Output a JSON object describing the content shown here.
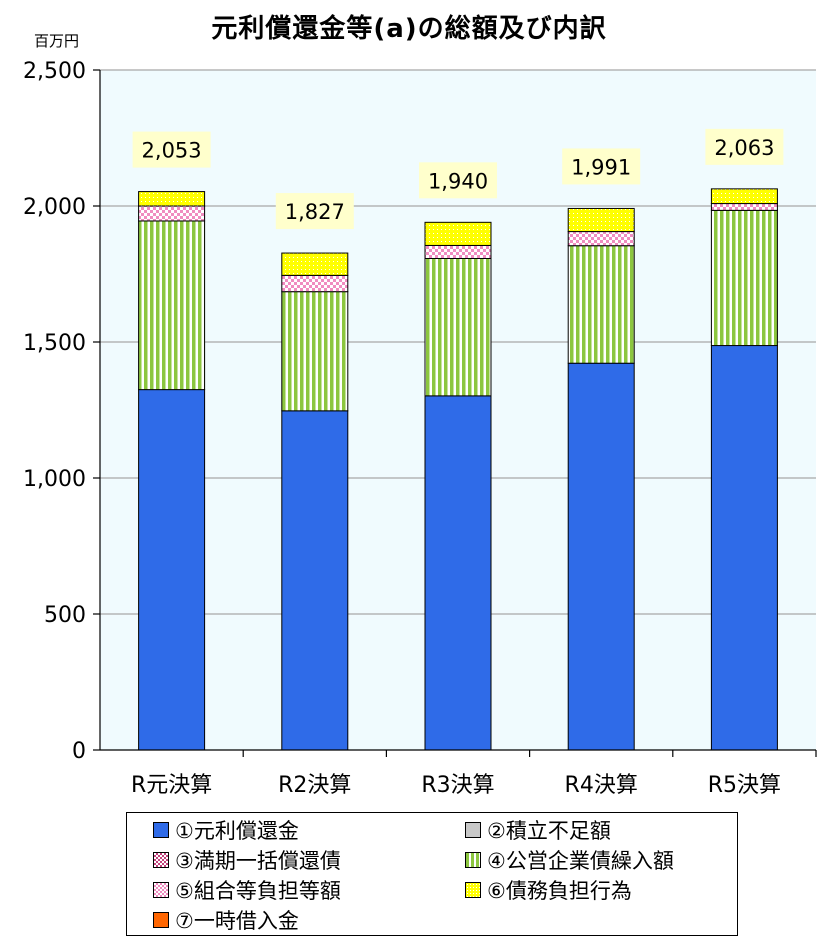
{
  "chart_data": {
    "type": "bar",
    "stacked": true,
    "title": "元利償還金等(a)の総額及び内訳",
    "unit_label": "百万円",
    "categories": [
      "R元決算",
      "R2決算",
      "R3決算",
      "R4決算",
      "R5決算"
    ],
    "series": [
      {
        "name": "①元利償還金",
        "color": "#2f6be8",
        "pattern": "solid",
        "values": [
          1325,
          1247,
          1302,
          1422,
          1487
        ]
      },
      {
        "name": "②積立不足額",
        "color": "#c8c8c8",
        "pattern": "solid",
        "values": [
          0,
          0,
          0,
          0,
          0
        ]
      },
      {
        "name": "③満期一括償還債",
        "color": "#c4427d",
        "pattern": "check",
        "values": [
          0,
          0,
          0,
          0,
          0
        ]
      },
      {
        "name": "④公営企業債繰入額",
        "color": "#8cc63f",
        "pattern": "vstripe",
        "values": [
          620,
          438,
          505,
          432,
          497
        ]
      },
      {
        "name": "⑤組合等負担等額",
        "color": "#f08cc0",
        "pattern": "check",
        "values": [
          55,
          60,
          48,
          52,
          25
        ]
      },
      {
        "name": "⑥債務負担行為",
        "color": "#ffff00",
        "pattern": "dots",
        "values": [
          53,
          82,
          85,
          85,
          54
        ]
      },
      {
        "name": "⑦一時借入金",
        "color": "#ff6600",
        "pattern": "solid",
        "values": [
          0,
          0,
          0,
          0,
          0
        ]
      }
    ],
    "totals": [
      2053,
      1827,
      1940,
      1991,
      2063
    ],
    "total_labels": [
      "2,053",
      "1,827",
      "1,940",
      "1,991",
      "2,063"
    ],
    "y_ticks": [
      0,
      500,
      1000,
      1500,
      2000,
      2500
    ],
    "y_tick_labels": [
      "0",
      "500",
      "1,000",
      "1,500",
      "2,000",
      "2,500"
    ],
    "ylim": [
      0,
      2500
    ],
    "grid": true,
    "legend_position": "bottom",
    "plot_background": "#f0fbfe"
  }
}
